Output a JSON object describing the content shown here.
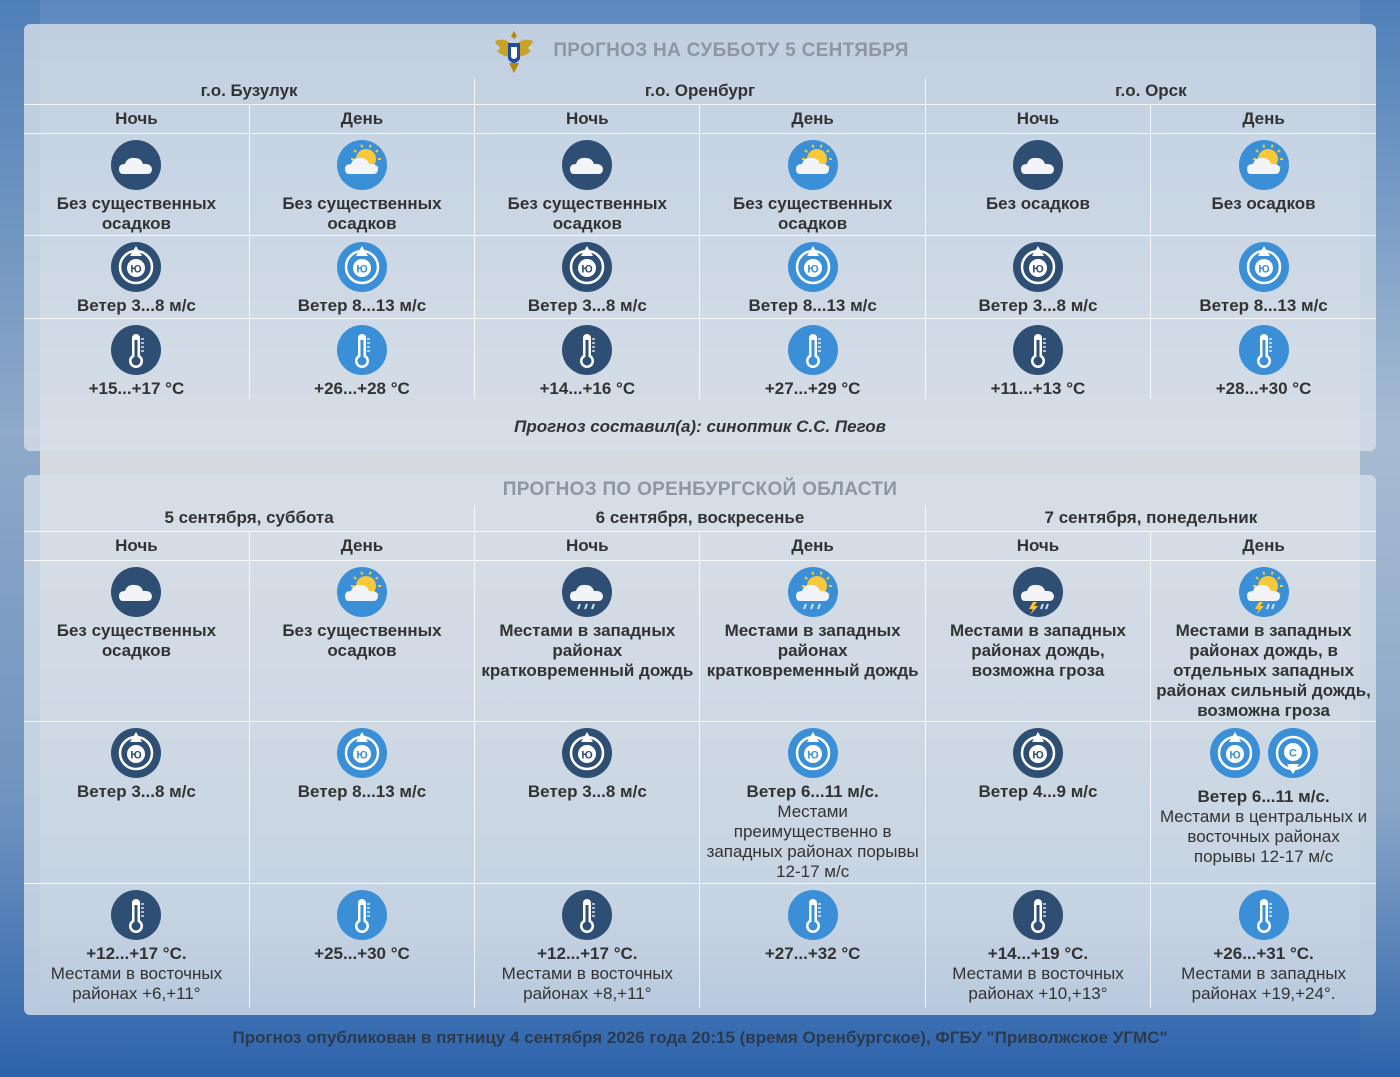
{
  "panel1": {
    "title": "ПРОГНОЗ НА СУББОТУ 5 СЕНТЯБРЯ",
    "groups": [
      "г.о. Бузулук",
      "г.о. Оренбург",
      "г.о. Орск"
    ],
    "periods": [
      "Ночь",
      "День",
      "Ночь",
      "День",
      "Ночь",
      "День"
    ],
    "cells": [
      {
        "icon": "cloudy-night-icon",
        "weather": "Без существенных осадков",
        "wind": "Ветер 3...8 м/с",
        "wind_dir": "Ю",
        "temp": "+15...+17 °С"
      },
      {
        "icon": "sun-cloud-icon",
        "weather": "Без существенных осадков",
        "wind": "Ветер 8...13 м/с",
        "wind_dir": "Ю",
        "temp": "+26...+28 °С"
      },
      {
        "icon": "cloudy-night-icon",
        "weather": "Без существенных осадков",
        "wind": "Ветер 3...8 м/с",
        "wind_dir": "Ю",
        "temp": "+14...+16 °С"
      },
      {
        "icon": "sun-cloud-icon",
        "weather": "Без существенных осадков",
        "wind": "Ветер 8...13 м/с",
        "wind_dir": "Ю",
        "temp": "+27...+29 °С"
      },
      {
        "icon": "cloudy-night-icon",
        "weather": "Без осадков",
        "wind": "Ветер 3...8 м/с",
        "wind_dir": "Ю",
        "temp": "+11...+13 °С"
      },
      {
        "icon": "sun-cloud-icon",
        "weather": "Без осадков",
        "wind": "Ветер 8...13 м/с",
        "wind_dir": "Ю",
        "temp": "+28...+30 °С"
      }
    ],
    "author": "Прогноз составил(а): синоптик С.С. Пегов"
  },
  "panel2": {
    "title": "ПРОГНОЗ ПО ОРЕНБУРГСКОЙ ОБЛАСТИ",
    "groups": [
      "5 сентября, суббота",
      "6 сентября, воскресенье",
      "7 сентября, понедельник"
    ],
    "periods": [
      "Ночь",
      "День",
      "Ночь",
      "День",
      "Ночь",
      "День"
    ],
    "cells": [
      {
        "icon": "cloudy-night-icon",
        "weather": "Без существенных осадков",
        "wind": "Ветер 3...8 м/с",
        "wind_note": "",
        "wind_dir": "Ю",
        "temp": "+12...+17 °С.",
        "temp_note": "Местами в восточных районах +6,+11°"
      },
      {
        "icon": "sun-cloud-icon",
        "weather": "Без существенных осадков",
        "wind": "Ветер 8...13 м/с",
        "wind_note": "",
        "wind_dir": "Ю",
        "temp": "+25...+30 °С",
        "temp_note": ""
      },
      {
        "icon": "rain-night-icon",
        "weather": "Местами в западных районах кратковременный дождь",
        "wind": "Ветер 3...8 м/с",
        "wind_note": "",
        "wind_dir": "Ю",
        "temp": "+12...+17 °С.",
        "temp_note": "Местами в восточных районах +8,+11°"
      },
      {
        "icon": "sun-rain-icon",
        "weather": "Местами в западных районах кратковременный дождь",
        "wind": "Ветер 6...11 м/с.",
        "wind_note": "Местами преимущественно в западных районах порывы 12-17 м/с",
        "wind_dir": "Ю",
        "temp": "+27...+32 °С",
        "temp_note": ""
      },
      {
        "icon": "thunder-night-icon",
        "weather": "Местами в западных районах дождь, возможна гроза",
        "wind": "Ветер 4...9 м/с",
        "wind_note": "",
        "wind_dir": "Ю",
        "temp": "+14...+19 °С.",
        "temp_note": "Местами в восточных районах +10,+13°"
      },
      {
        "icon": "sun-thunder-icon",
        "weather": "Местами в западных районах дождь, в отдельных западных районах сильный дождь, возможна гроза",
        "wind": "Ветер 6...11 м/с.",
        "wind_note": "Местами в центральных и восточных районах порывы 12-17 м/с",
        "wind_dir": "Ю",
        "wind_dir2": "С",
        "temp": "+26...+31 °С.",
        "temp_note": "Местами в западных районах +19,+24°."
      }
    ]
  },
  "footer": "Прогноз опубликован в пятницу 4 сентября 2026 года 20:15 (время Оренбургское), ФГБУ \"Приволжское УГМС\""
}
